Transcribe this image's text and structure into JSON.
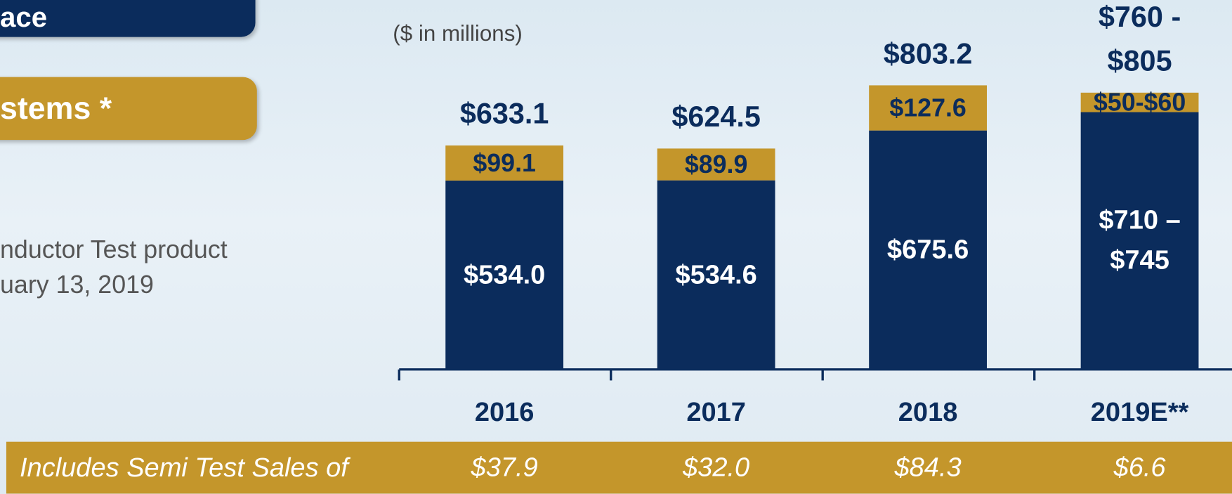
{
  "header": {
    "title": "ace",
    "subtitle": "stems *"
  },
  "note": {
    "lines": [
      "nductor Test product",
      "uary 13, 2019"
    ]
  },
  "chart_data": {
    "type": "stacked_bar",
    "subtitle": "($ in millions)",
    "categories": [
      "2016",
      "2017",
      "2018",
      "2019E**"
    ],
    "series": [
      {
        "color": "#0b2c5c",
        "values": [
          534.0,
          534.6,
          675.6,
          727.5
        ],
        "value_labels": [
          "$534.0",
          "$534.6",
          "$675.6",
          "$710 – $745"
        ]
      },
      {
        "color": "#c4962b",
        "values": [
          99.1,
          89.9,
          127.6,
          55
        ],
        "value_labels": [
          "$99.1",
          "$89.9",
          "$127.6",
          "$50-$60"
        ]
      }
    ],
    "total_labels": [
      "$633.1",
      "$624.5",
      "$803.2",
      "$760 - $805"
    ]
  },
  "footer": {
    "label": "Includes Semi Test Sales of",
    "values": [
      "$37.9",
      "$32.0",
      "$84.3",
      "$6.6"
    ]
  }
}
